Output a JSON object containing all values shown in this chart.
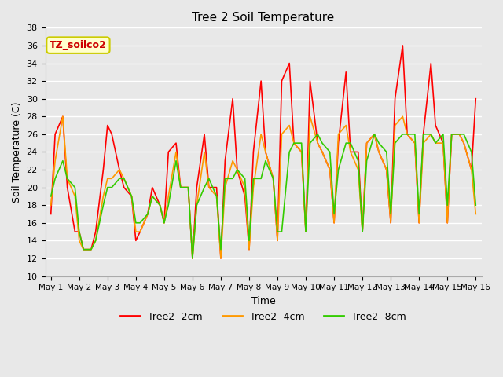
{
  "title": "Tree 2 Soil Temperature",
  "xlabel": "Time",
  "ylabel": "Soil Temperature (C)",
  "ylim": [
    10,
    38
  ],
  "yticks": [
    10,
    12,
    14,
    16,
    18,
    20,
    22,
    24,
    26,
    28,
    30,
    32,
    34,
    36,
    38
  ],
  "annotation_text": "TZ_soilco2",
  "annotation_color": "#cc0000",
  "annotation_bg": "#ffffcc",
  "annotation_border": "#cccc00",
  "bg_color": "#e8e8e8",
  "series": {
    "Tree2 -2cm": {
      "color": "#ff0000",
      "lw": 1.2,
      "x": [
        0.0,
        0.15,
        0.42,
        0.58,
        0.85,
        1.0,
        1.15,
        1.42,
        1.58,
        1.85,
        2.0,
        2.15,
        2.42,
        2.58,
        2.85,
        3.0,
        3.15,
        3.42,
        3.58,
        3.85,
        4.0,
        4.15,
        4.42,
        4.58,
        4.85,
        5.0,
        5.15,
        5.42,
        5.58,
        5.85,
        6.0,
        6.15,
        6.42,
        6.58,
        6.85,
        7.0,
        7.15,
        7.42,
        7.58,
        7.85,
        8.0,
        8.15,
        8.42,
        8.58,
        8.85,
        9.0,
        9.15,
        9.42,
        9.58,
        9.85,
        10.0,
        10.15,
        10.42,
        10.58,
        10.85,
        11.0,
        11.15,
        11.42,
        11.58,
        11.85,
        12.0,
        12.15,
        12.42,
        12.58,
        12.85,
        13.0,
        13.15,
        13.42,
        13.58,
        13.85,
        14.0,
        14.15,
        14.42,
        14.58,
        14.85,
        15.0
      ],
      "y": [
        17,
        26,
        28,
        20,
        15,
        15,
        13,
        13,
        15,
        22,
        27,
        26,
        22,
        20,
        19,
        14,
        15,
        17,
        20,
        18,
        16,
        24,
        25,
        20,
        20,
        12,
        20,
        26,
        20,
        20,
        12,
        23,
        30,
        22,
        19,
        13,
        24,
        32,
        24,
        21,
        14,
        32,
        34,
        25,
        24,
        15,
        32,
        25,
        24,
        22,
        16,
        25,
        33,
        24,
        24,
        15,
        25,
        26,
        24,
        22,
        16,
        30,
        36,
        26,
        25,
        16,
        26,
        34,
        27,
        25,
        16,
        26,
        26,
        25,
        22,
        30
      ]
    },
    "Tree2 -4cm": {
      "color": "#ff9900",
      "lw": 1.2,
      "x": [
        0.0,
        0.15,
        0.42,
        0.58,
        0.85,
        1.0,
        1.15,
        1.42,
        1.58,
        1.85,
        2.0,
        2.15,
        2.42,
        2.58,
        2.85,
        3.0,
        3.15,
        3.42,
        3.58,
        3.85,
        4.0,
        4.15,
        4.42,
        4.58,
        4.85,
        5.0,
        5.15,
        5.42,
        5.58,
        5.85,
        6.0,
        6.15,
        6.42,
        6.58,
        6.85,
        7.0,
        7.15,
        7.42,
        7.58,
        7.85,
        8.0,
        8.15,
        8.42,
        8.58,
        8.85,
        9.0,
        9.15,
        9.42,
        9.58,
        9.85,
        10.0,
        10.15,
        10.42,
        10.58,
        10.85,
        11.0,
        11.15,
        11.42,
        11.58,
        11.85,
        12.0,
        12.15,
        12.42,
        12.58,
        12.85,
        13.0,
        13.15,
        13.42,
        13.58,
        13.85,
        14.0,
        14.15,
        14.42,
        14.58,
        14.85,
        15.0
      ],
      "y": [
        18,
        23,
        28,
        21,
        19,
        14,
        13,
        13,
        14,
        19,
        21,
        21,
        22,
        21,
        19,
        15,
        15,
        17,
        19,
        18,
        16,
        19,
        24,
        20,
        20,
        12,
        18,
        24,
        20,
        19,
        12,
        20,
        23,
        22,
        20,
        13,
        20,
        26,
        24,
        21,
        14,
        26,
        27,
        25,
        24,
        15,
        28,
        25,
        24,
        22,
        16,
        26,
        27,
        24,
        22,
        15,
        25,
        26,
        24,
        22,
        16,
        27,
        28,
        26,
        25,
        16,
        25,
        26,
        25,
        25,
        16,
        26,
        26,
        25,
        22,
        17
      ]
    },
    "Tree2 -8cm": {
      "color": "#33cc00",
      "lw": 1.2,
      "x": [
        0.0,
        0.15,
        0.42,
        0.58,
        0.85,
        1.0,
        1.15,
        1.42,
        1.58,
        1.85,
        2.0,
        2.15,
        2.42,
        2.58,
        2.85,
        3.0,
        3.15,
        3.42,
        3.58,
        3.85,
        4.0,
        4.15,
        4.42,
        4.58,
        4.85,
        5.0,
        5.15,
        5.42,
        5.58,
        5.85,
        6.0,
        6.15,
        6.42,
        6.58,
        6.85,
        7.0,
        7.15,
        7.42,
        7.58,
        7.85,
        8.0,
        8.15,
        8.42,
        8.58,
        8.85,
        9.0,
        9.15,
        9.42,
        9.58,
        9.85,
        10.0,
        10.15,
        10.42,
        10.58,
        10.85,
        11.0,
        11.15,
        11.42,
        11.58,
        11.85,
        12.0,
        12.15,
        12.42,
        12.58,
        12.85,
        13.0,
        13.15,
        13.42,
        13.58,
        13.85,
        14.0,
        14.15,
        14.42,
        14.58,
        14.85,
        15.0
      ],
      "y": [
        19,
        21,
        23,
        21,
        20,
        15,
        13,
        13,
        14,
        18,
        20,
        20,
        21,
        21,
        19,
        16,
        16,
        17,
        19,
        18,
        16,
        18,
        23,
        20,
        20,
        12,
        18,
        20,
        21,
        19,
        13,
        21,
        21,
        22,
        21,
        14,
        21,
        21,
        23,
        21,
        15,
        15,
        24,
        25,
        25,
        15,
        25,
        26,
        25,
        24,
        17,
        22,
        25,
        25,
        23,
        15,
        23,
        26,
        25,
        24,
        17,
        25,
        26,
        26,
        26,
        17,
        26,
        26,
        25,
        26,
        18,
        26,
        26,
        26,
        24,
        18
      ]
    }
  },
  "xtick_positions": [
    0,
    1,
    2,
    3,
    4,
    5,
    6,
    7,
    8,
    9,
    10,
    11,
    12,
    13,
    14,
    15
  ],
  "xtick_labels": [
    "May 1",
    "May 2",
    "May 3",
    "May 4",
    "May 5",
    "May 6",
    "May 7",
    "May 8",
    "May 9",
    "May 10",
    "May 11",
    "May 12",
    "May 13",
    "May 14",
    "May 15",
    "May 16"
  ],
  "grid_color": "#ffffff",
  "legend_items": [
    {
      "label": "Tree2 -2cm",
      "color": "#ff0000"
    },
    {
      "label": "Tree2 -4cm",
      "color": "#ff9900"
    },
    {
      "label": "Tree2 -8cm",
      "color": "#33cc00"
    }
  ]
}
